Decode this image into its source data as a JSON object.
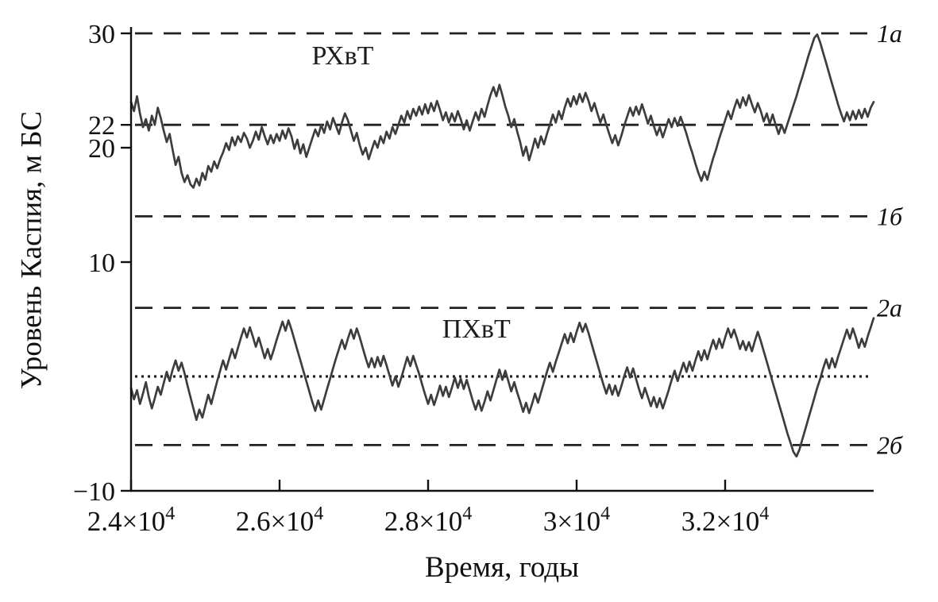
{
  "chart_data": {
    "type": "line",
    "title": "",
    "xlabel": "Время, годы",
    "ylabel": "Уровень Каспия, м БС",
    "xlim": [
      24000,
      34000
    ],
    "ylim": [
      -10,
      30
    ],
    "grid": false,
    "legend": "none",
    "x_ticks": [
      24000,
      26000,
      28000,
      30000,
      32000
    ],
    "x_tick_labels": [
      "2.4×10⁴",
      "2.6×10⁴",
      "2.8×10⁴",
      "3×10⁴",
      "3.2×10⁴"
    ],
    "y_ticks": [
      30,
      22,
      20,
      10,
      -10
    ],
    "y_tick_labels": [
      "30",
      "22",
      "20",
      "10",
      "−10"
    ],
    "colors": {
      "series": "#3d3d3d",
      "axis": "#111111",
      "reference": "#222222",
      "background": "#ffffff"
    },
    "reference_lines": [
      {
        "label": "1а",
        "value": 30,
        "style": "dashed"
      },
      {
        "label": "",
        "value": 22,
        "style": "dashed"
      },
      {
        "label": "1б",
        "value": 14,
        "style": "dashed"
      },
      {
        "label": "2а",
        "value": 6,
        "style": "dashed"
      },
      {
        "label": "",
        "value": 0,
        "style": "dotted"
      },
      {
        "label": "2б",
        "value": -6,
        "style": "dashed"
      }
    ],
    "series": [
      {
        "name": "РХвТ",
        "label_x": 26850,
        "label_y": 27.3,
        "x_start": 24000,
        "x_step": 40,
        "values": [
          24,
          23.2,
          24.5,
          23,
          21.8,
          22.5,
          21.5,
          22.8,
          22,
          23.5,
          22.6,
          21.5,
          20.5,
          21.2,
          19.8,
          18.5,
          19.2,
          17.8,
          17,
          17.6,
          16.8,
          16.5,
          17.3,
          16.7,
          17.8,
          17.2,
          18.4,
          17.9,
          18.8,
          18.2,
          19,
          19.6,
          20.4,
          19.8,
          20.9,
          20.2,
          21,
          20.5,
          21.3,
          20.8,
          20,
          20.6,
          21.4,
          20.7,
          21.8,
          21,
          20.3,
          21.1,
          20.4,
          21.2,
          20.6,
          21.5,
          20.8,
          21.7,
          21,
          19.9,
          20.7,
          19.5,
          20.3,
          19.2,
          20,
          20.8,
          21.6,
          21,
          22,
          21.3,
          22.3,
          21.6,
          22.6,
          21.9,
          21.2,
          22.2,
          23,
          22.4,
          21.5,
          20.6,
          21.3,
          20.2,
          19.4,
          20,
          19,
          19.8,
          20.6,
          20,
          21,
          20.4,
          21.4,
          20.8,
          21.8,
          21.2,
          22,
          22.8,
          22.2,
          23.2,
          22.5,
          23.4,
          22.8,
          23.6,
          22.9,
          23.8,
          23,
          23.9,
          23.2,
          24.1,
          23.3,
          22.4,
          23.1,
          22.2,
          23,
          22.3,
          23.2,
          22.5,
          21.6,
          22.4,
          21.5,
          22.3,
          23.1,
          22.4,
          23.4,
          22.7,
          23.7,
          24.6,
          25.3,
          24.5,
          25.5,
          24.6,
          23.6,
          22.8,
          21.8,
          22.5,
          21.4,
          20.5,
          19.3,
          20.1,
          18.9,
          19.8,
          20.8,
          20,
          21,
          20.3,
          21.2,
          22,
          22.9,
          22.2,
          23.2,
          22.5,
          23.5,
          24.3,
          23.6,
          24.5,
          23.8,
          24.7,
          24,
          24.8,
          24.1,
          23.2,
          23.9,
          23,
          22.2,
          22.9,
          22,
          21.2,
          20.4,
          21.1,
          20.2,
          21,
          21.9,
          22.7,
          23.5,
          22.8,
          23.6,
          22.9,
          23.8,
          23,
          22.1,
          22.8,
          21.9,
          21.1,
          21.8,
          20.9,
          21.7,
          22.5,
          21.8,
          22.6,
          21.9,
          22.7,
          22,
          21.2,
          20.3,
          19.5,
          18.6,
          17.8,
          17.1,
          17.9,
          17.2,
          18.2,
          19.1,
          19.9,
          20.8,
          21.6,
          22.4,
          23.2,
          22.5,
          23.4,
          24.2,
          23.5,
          24.4,
          23.7,
          24.6,
          23.8,
          23.1,
          23.9,
          23.2,
          22.3,
          23,
          22.1,
          22.9,
          22,
          21.2,
          22,
          21.3,
          22.1,
          22.9,
          23.7,
          24.5,
          25.4,
          26.2,
          27.1,
          28,
          28.8,
          29.6,
          29.9,
          29.2,
          28.3,
          27.4,
          26.5,
          25.6,
          24.7,
          23.8,
          23,
          22.3,
          23.1,
          22.4,
          23.2,
          22.5,
          23.3,
          22.6,
          23.4,
          22.7,
          23.5,
          24
        ]
      },
      {
        "name": "ПХвТ",
        "label_x": 28650,
        "label_y": 3.4,
        "x_start": 24000,
        "x_step": 40,
        "values": [
          -1,
          -2,
          -1.2,
          -2.4,
          -1.5,
          -0.5,
          -1.8,
          -2.8,
          -1.9,
          -0.9,
          -1.6,
          -0.6,
          0.4,
          -0.4,
          0.6,
          1.4,
          0.5,
          1.2,
          0.3,
          -0.8,
          -1.8,
          -2.8,
          -3.8,
          -2.9,
          -3.6,
          -2.6,
          -1.6,
          -2.4,
          -1.4,
          -0.4,
          0.5,
          1.4,
          0.6,
          1.5,
          2.4,
          1.6,
          2.5,
          3.4,
          4.2,
          3.4,
          4.3,
          3.5,
          2.6,
          3.4,
          2.5,
          1.6,
          2.4,
          1.5,
          2.3,
          3.2,
          4,
          4.8,
          4,
          4.9,
          4.1,
          3.2,
          2.3,
          1.4,
          0.5,
          -0.4,
          -1.3,
          -2.2,
          -3,
          -2.1,
          -2.9,
          -2,
          -1.1,
          -0.2,
          0.7,
          1.6,
          2.4,
          3.2,
          2.4,
          3.3,
          4.1,
          3.3,
          4.2,
          3.4,
          2.5,
          1.6,
          0.8,
          1.6,
          0.8,
          1.7,
          0.9,
          1.8,
          1,
          0.1,
          -0.8,
          0,
          -0.9,
          -0.1,
          0.8,
          1.7,
          0.9,
          1.8,
          1,
          0.2,
          -0.7,
          -1.6,
          -2.4,
          -1.6,
          -2.5,
          -1.7,
          -0.8,
          -1.7,
          -0.9,
          -1.8,
          -1,
          -0.1,
          -1,
          -0.2,
          -1.1,
          -0.3,
          -1.2,
          -2.1,
          -2.9,
          -2.1,
          -3,
          -2.2,
          -1.3,
          -2.1,
          -1.2,
          -0.3,
          0.6,
          -0.3,
          0.5,
          -0.4,
          -1.3,
          -0.5,
          -1.4,
          -2.2,
          -3.1,
          -2.3,
          -3.2,
          -2.4,
          -1.5,
          -2.3,
          -1.4,
          -0.5,
          0.4,
          1.2,
          0.4,
          1.3,
          2.1,
          2.9,
          3.7,
          2.9,
          3.8,
          3,
          3.9,
          4.7,
          3.9,
          4.6,
          3.8,
          2.9,
          2,
          1.1,
          0.2,
          -0.7,
          -1.5,
          -0.7,
          -1.6,
          -0.8,
          -1.7,
          -0.9,
          0,
          0.8,
          -0.1,
          0.7,
          -0.2,
          -1.1,
          -1.9,
          -1,
          -1.8,
          -2.6,
          -1.8,
          -2.7,
          -1.9,
          -2.8,
          -2,
          -1.2,
          -0.3,
          0.5,
          -0.4,
          0.4,
          1.2,
          0.4,
          1.3,
          0.5,
          1.4,
          2.2,
          1.4,
          2.3,
          1.5,
          2.4,
          3.2,
          2.4,
          3.3,
          2.5,
          3.4,
          4.2,
          3.4,
          4.1,
          3.3,
          2.4,
          3.1,
          2.3,
          3,
          2.2,
          3.1,
          3.9,
          3.1,
          2.2,
          1.3,
          0.4,
          -0.5,
          -1.4,
          -2.3,
          -3.2,
          -4.1,
          -5,
          -5.8,
          -6.6,
          -7,
          -6.4,
          -5.5,
          -4.6,
          -3.7,
          -2.8,
          -1.9,
          -1,
          -0.2,
          0.7,
          1.5,
          0.7,
          1.6,
          0.8,
          1.7,
          2.5,
          3.3,
          4.1,
          3.3,
          4.2,
          3.4,
          2.5,
          3.3,
          2.6,
          3.5,
          4.3,
          5.1
        ]
      }
    ]
  }
}
